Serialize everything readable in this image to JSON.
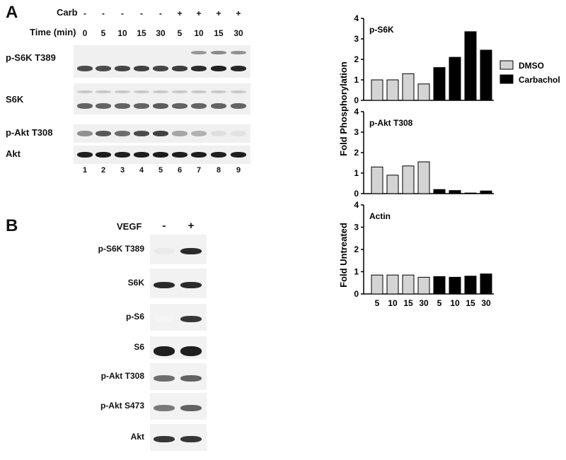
{
  "panel_a": {
    "letter": "A",
    "row_headers": {
      "carb": "Carb",
      "time": "Time (min)"
    },
    "carb_signs": [
      "-",
      "-",
      "-",
      "-",
      "-",
      "+",
      "+",
      "+",
      "+"
    ],
    "time_values": [
      "0",
      "5",
      "10",
      "15",
      "30",
      "5",
      "10",
      "15",
      "30"
    ],
    "lane_numbers": [
      "1",
      "2",
      "3",
      "4",
      "5",
      "6",
      "7",
      "8",
      "9"
    ],
    "blots": [
      {
        "label": "p-S6K T389",
        "intensity": [
          0.75,
          0.75,
          0.78,
          0.8,
          0.78,
          0.82,
          0.9,
          0.95,
          0.92
        ]
      },
      {
        "label": "S6K",
        "intensity": [
          0.65,
          0.65,
          0.65,
          0.65,
          0.68,
          0.65,
          0.65,
          0.65,
          0.65
        ]
      },
      {
        "label": "p-Akt T308",
        "intensity": [
          0.45,
          0.7,
          0.6,
          0.75,
          0.8,
          0.35,
          0.3,
          0.1,
          0.08
        ]
      },
      {
        "label": "Akt",
        "intensity": [
          0.95,
          0.97,
          0.95,
          0.96,
          0.97,
          0.95,
          0.96,
          0.95,
          0.95
        ]
      }
    ]
  },
  "panel_b": {
    "letter": "B",
    "header_label": "VEGF",
    "signs": [
      "-",
      "+"
    ],
    "blots": [
      {
        "label": "p-S6K T389",
        "intensity": [
          0.05,
          0.9
        ]
      },
      {
        "label": "S6K",
        "intensity": [
          0.9,
          0.9
        ]
      },
      {
        "label": "p-S6",
        "intensity": [
          0.0,
          0.85
        ]
      },
      {
        "label": "S6",
        "intensity": [
          0.95,
          0.95
        ]
      },
      {
        "label": "p-Akt T308",
        "intensity": [
          0.6,
          0.65
        ]
      },
      {
        "label": "p-Akt S473",
        "intensity": [
          0.55,
          0.65
        ]
      },
      {
        "label": "Akt",
        "intensity": [
          0.85,
          0.85
        ]
      }
    ]
  },
  "colors": {
    "dmso": "#d4d4d4",
    "carbachol": "#000000"
  },
  "chart_data": [
    {
      "type": "bar",
      "title": "p-S6K",
      "ylabel": "Fold Phosphorylation",
      "ylim": [
        0,
        4
      ],
      "yticks": [
        "0",
        "1",
        "2",
        "3",
        "4"
      ],
      "categories": [
        "5",
        "10",
        "15",
        "30",
        "5",
        "10",
        "15",
        "30"
      ],
      "series": [
        {
          "name": "DMSO",
          "values": [
            1.0,
            1.0,
            1.3,
            0.8,
            null,
            null,
            null,
            null
          ]
        },
        {
          "name": "Carbachol",
          "values": [
            null,
            null,
            null,
            null,
            1.6,
            2.1,
            3.35,
            2.45
          ]
        }
      ],
      "legend": {
        "position": "right",
        "entries": [
          "DMSO",
          "Carbachol"
        ]
      }
    },
    {
      "type": "bar",
      "title": "p-Akt T308",
      "ylabel": "",
      "ylim": [
        0,
        4
      ],
      "yticks": [
        "0",
        "1",
        "2",
        "3",
        "4"
      ],
      "categories": [
        "5",
        "10",
        "15",
        "30",
        "5",
        "10",
        "15",
        "30"
      ],
      "series": [
        {
          "name": "DMSO",
          "values": [
            1.3,
            0.9,
            1.35,
            1.55,
            null,
            null,
            null,
            null
          ]
        },
        {
          "name": "Carbachol",
          "values": [
            null,
            null,
            null,
            null,
            0.2,
            0.15,
            0.03,
            0.13
          ]
        }
      ]
    },
    {
      "type": "bar",
      "title": "Actin",
      "ylabel": "Fold Untreated",
      "ylim": [
        0,
        4
      ],
      "yticks": [
        "0",
        "1",
        "2",
        "3",
        "4"
      ],
      "categories": [
        "5",
        "10",
        "15",
        "30",
        "5",
        "10",
        "15",
        "30"
      ],
      "xtick_labels": [
        "5",
        "10",
        "15",
        "30",
        "5",
        "10",
        "15",
        "30"
      ],
      "series": [
        {
          "name": "DMSO",
          "values": [
            0.85,
            0.85,
            0.85,
            0.75,
            null,
            null,
            null,
            null
          ]
        },
        {
          "name": "Carbachol",
          "values": [
            null,
            null,
            null,
            null,
            0.78,
            0.75,
            0.8,
            0.9
          ]
        }
      ]
    }
  ]
}
